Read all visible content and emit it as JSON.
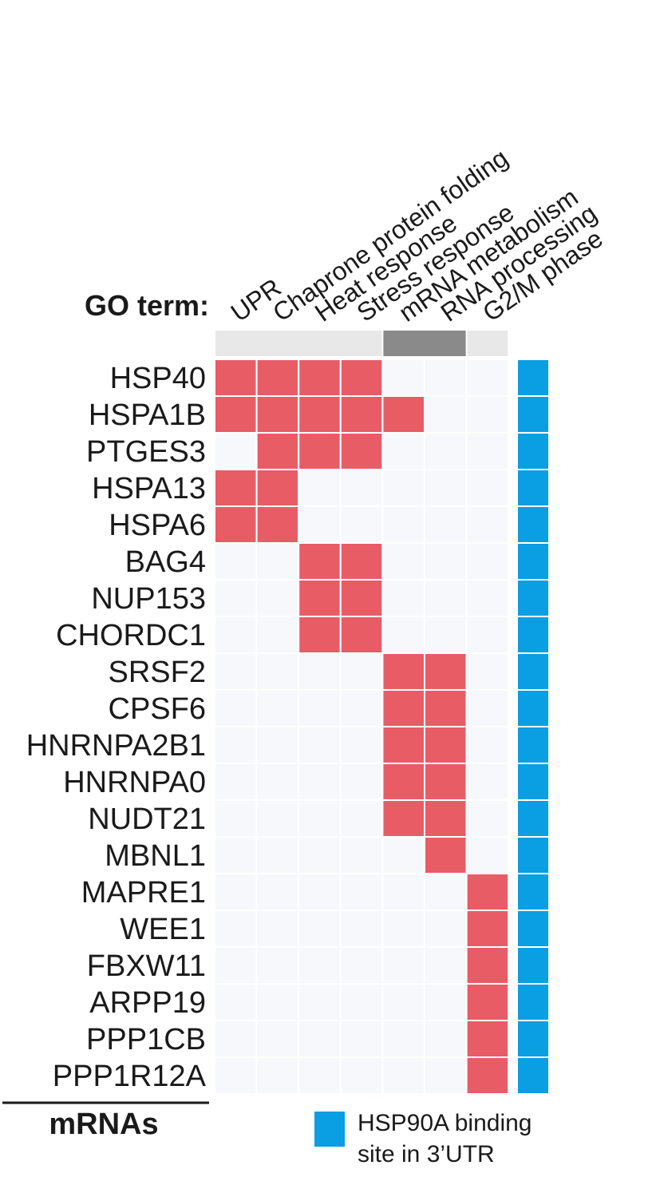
{
  "chart_data": {
    "type": "heatmap",
    "row_header_label": "GO term:",
    "column_footer_label": "mRNAs",
    "columns": [
      "UPR",
      "Chaprone protein folding",
      "Heat response",
      "Stress response",
      "mRNA metabolism",
      "RNA processing",
      "G2/M phase"
    ],
    "column_groups": [
      {
        "columns": [
          0,
          1,
          2,
          3
        ],
        "color": "#e8e8e8"
      },
      {
        "columns": [
          4,
          5
        ],
        "color": "#8a8a8a"
      },
      {
        "columns": [
          6
        ],
        "color": "#e8e8e8"
      }
    ],
    "rows": [
      "HSP40",
      "HSPA1B",
      "PTGES3",
      "HSPA13",
      "HSPA6",
      "BAG4",
      "NUP153",
      "CHORDC1",
      "SRSF2",
      "CPSF6",
      "HNRNPA2B1",
      "HNRNPA0",
      "NUDT21",
      "MBNL1",
      "MAPRE1",
      "WEE1",
      "FBXW11",
      "ARPP19",
      "PPP1CB",
      "PPP1R12A"
    ],
    "matrix": [
      [
        1,
        1,
        1,
        1,
        0,
        0,
        0
      ],
      [
        1,
        1,
        1,
        1,
        1,
        0,
        0
      ],
      [
        0,
        1,
        1,
        1,
        0,
        0,
        0
      ],
      [
        1,
        1,
        0,
        0,
        0,
        0,
        0
      ],
      [
        1,
        1,
        0,
        0,
        0,
        0,
        0
      ],
      [
        0,
        0,
        1,
        1,
        0,
        0,
        0
      ],
      [
        0,
        0,
        1,
        1,
        0,
        0,
        0
      ],
      [
        0,
        0,
        1,
        1,
        0,
        0,
        0
      ],
      [
        0,
        0,
        0,
        0,
        1,
        1,
        0
      ],
      [
        0,
        0,
        0,
        0,
        1,
        1,
        0
      ],
      [
        0,
        0,
        0,
        0,
        1,
        1,
        0
      ],
      [
        0,
        0,
        0,
        0,
        1,
        1,
        0
      ],
      [
        0,
        0,
        0,
        0,
        1,
        1,
        0
      ],
      [
        0,
        0,
        0,
        0,
        0,
        1,
        0
      ],
      [
        0,
        0,
        0,
        0,
        0,
        0,
        1
      ],
      [
        0,
        0,
        0,
        0,
        0,
        0,
        1
      ],
      [
        0,
        0,
        0,
        0,
        0,
        0,
        1
      ],
      [
        0,
        0,
        0,
        0,
        0,
        0,
        1
      ],
      [
        0,
        0,
        0,
        0,
        0,
        0,
        1
      ],
      [
        0,
        0,
        0,
        0,
        0,
        0,
        1
      ]
    ],
    "hsp90a_binding": [
      1,
      1,
      1,
      1,
      1,
      1,
      1,
      1,
      1,
      1,
      1,
      1,
      1,
      1,
      1,
      1,
      1,
      1,
      1,
      1
    ],
    "colors": {
      "filled": "#e85c66",
      "empty": "#f7f8fc",
      "binding": "#0a9ee3",
      "grid": "#ffffff"
    },
    "legend": {
      "label_line1": "HSP90A binding",
      "label_line2": "site in 3’UTR",
      "color": "#0a9ee3"
    }
  }
}
